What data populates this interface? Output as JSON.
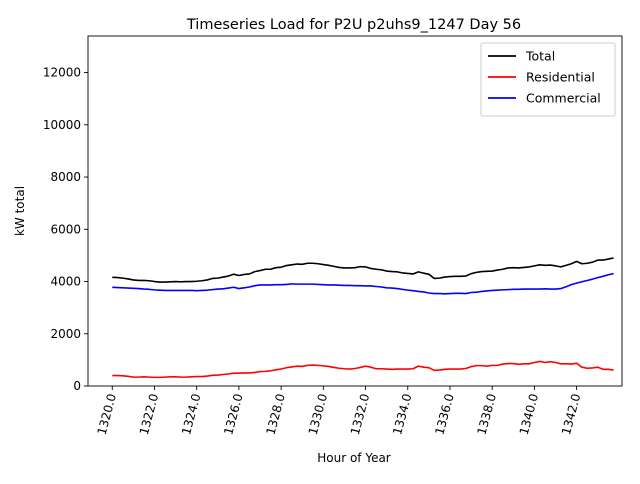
{
  "chart_data": {
    "type": "line",
    "title": "Timeseries Load for P2U p2uhs9_1247  Day 56",
    "xlabel": "Hour of Year",
    "ylabel": "kW total",
    "xlim": [
      1318.85,
      1344.15
    ],
    "ylim": [
      0,
      13400
    ],
    "xticks": [
      1320.0,
      1322.0,
      1324.0,
      1326.0,
      1328.0,
      1330.0,
      1332.0,
      1334.0,
      1336.0,
      1338.0,
      1340.0,
      1342.0
    ],
    "xtick_labels": [
      "1320.0",
      "1322.0",
      "1324.0",
      "1326.0",
      "1328.0",
      "1330.0",
      "1332.0",
      "1334.0",
      "1336.0",
      "1338.0",
      "1340.0",
      "1342.0"
    ],
    "yticks": [
      0,
      2000,
      4000,
      6000,
      8000,
      10000,
      12000
    ],
    "ytick_labels": [
      "0",
      "2000",
      "4000",
      "6000",
      "8000",
      "10000",
      "12000"
    ],
    "legend_position": "upper right",
    "x": [
      1320.0,
      1320.25,
      1320.5,
      1320.75,
      1321.0,
      1321.25,
      1321.5,
      1321.75,
      1322.0,
      1322.25,
      1322.5,
      1322.75,
      1323.0,
      1323.25,
      1323.5,
      1323.75,
      1324.0,
      1324.25,
      1324.5,
      1324.75,
      1325.0,
      1325.25,
      1325.5,
      1325.75,
      1326.0,
      1326.25,
      1326.5,
      1326.75,
      1327.0,
      1327.25,
      1327.5,
      1327.75,
      1328.0,
      1328.25,
      1328.5,
      1328.75,
      1329.0,
      1329.25,
      1329.5,
      1329.75,
      1330.0,
      1330.25,
      1330.5,
      1330.75,
      1331.0,
      1331.25,
      1331.5,
      1331.75,
      1332.0,
      1332.25,
      1332.5,
      1332.75,
      1333.0,
      1333.25,
      1333.5,
      1333.75,
      1334.0,
      1334.25,
      1334.5,
      1334.75,
      1335.0,
      1335.25,
      1335.5,
      1335.75,
      1336.0,
      1336.25,
      1336.5,
      1336.75,
      1337.0,
      1337.25,
      1337.5,
      1337.75,
      1338.0,
      1338.25,
      1338.5,
      1338.75,
      1339.0,
      1339.25,
      1339.5,
      1339.75,
      1340.0,
      1340.25,
      1340.5,
      1340.75,
      1341.0,
      1341.25,
      1341.5,
      1341.75,
      1342.0,
      1342.25,
      1342.5,
      1342.75,
      1343.0,
      1343.25,
      1343.5,
      1343.75
    ],
    "series": [
      {
        "name": "Total",
        "color": "#000000",
        "values": [
          4160,
          4150,
          4130,
          4100,
          4060,
          4040,
          4040,
          4030,
          4000,
          3980,
          3980,
          3990,
          4000,
          3990,
          4000,
          4000,
          4010,
          4030,
          4060,
          4120,
          4130,
          4170,
          4210,
          4280,
          4230,
          4270,
          4290,
          4380,
          4420,
          4470,
          4470,
          4530,
          4550,
          4610,
          4640,
          4670,
          4660,
          4700,
          4700,
          4680,
          4650,
          4620,
          4580,
          4540,
          4520,
          4520,
          4530,
          4570,
          4560,
          4500,
          4470,
          4450,
          4400,
          4380,
          4370,
          4330,
          4310,
          4290,
          4370,
          4320,
          4280,
          4120,
          4130,
          4170,
          4190,
          4200,
          4200,
          4210,
          4300,
          4350,
          4380,
          4390,
          4400,
          4440,
          4470,
          4520,
          4530,
          4520,
          4540,
          4560,
          4600,
          4640,
          4620,
          4630,
          4600,
          4560,
          4620,
          4680,
          4770,
          4680,
          4700,
          4740,
          4820,
          4820,
          4860,
          4900
        ]
      },
      {
        "name": "Residential",
        "color": "#ff0000",
        "values": [
          400,
          400,
          390,
          370,
          340,
          340,
          350,
          340,
          330,
          330,
          340,
          350,
          350,
          340,
          340,
          350,
          360,
          360,
          380,
          410,
          420,
          440,
          460,
          490,
          490,
          500,
          500,
          520,
          550,
          560,
          580,
          620,
          650,
          700,
          730,
          760,
          750,
          790,
          800,
          790,
          770,
          750,
          710,
          680,
          660,
          650,
          670,
          710,
          760,
          720,
          660,
          660,
          650,
          640,
          650,
          650,
          650,
          660,
          760,
          720,
          700,
          600,
          610,
          640,
          650,
          650,
          650,
          670,
          740,
          780,
          780,
          760,
          790,
          790,
          840,
          860,
          860,
          830,
          850,
          850,
          900,
          940,
          900,
          930,
          900,
          850,
          850,
          840,
          870,
          720,
          680,
          690,
          720,
          640,
          640,
          610
        ]
      },
      {
        "name": "Commercial",
        "color": "#0000ff",
        "values": [
          3780,
          3770,
          3760,
          3750,
          3740,
          3730,
          3710,
          3700,
          3680,
          3670,
          3660,
          3660,
          3660,
          3660,
          3660,
          3660,
          3650,
          3660,
          3670,
          3690,
          3710,
          3720,
          3750,
          3780,
          3730,
          3760,
          3790,
          3840,
          3870,
          3870,
          3870,
          3880,
          3880,
          3890,
          3910,
          3900,
          3900,
          3900,
          3900,
          3890,
          3880,
          3870,
          3870,
          3860,
          3850,
          3850,
          3840,
          3840,
          3830,
          3830,
          3810,
          3790,
          3760,
          3750,
          3730,
          3700,
          3670,
          3650,
          3620,
          3600,
          3560,
          3540,
          3540,
          3530,
          3540,
          3550,
          3550,
          3540,
          3580,
          3590,
          3620,
          3640,
          3660,
          3670,
          3680,
          3690,
          3700,
          3700,
          3710,
          3710,
          3710,
          3710,
          3720,
          3710,
          3710,
          3730,
          3800,
          3880,
          3940,
          3990,
          4040,
          4090,
          4150,
          4200,
          4260,
          4300
        ]
      }
    ]
  }
}
